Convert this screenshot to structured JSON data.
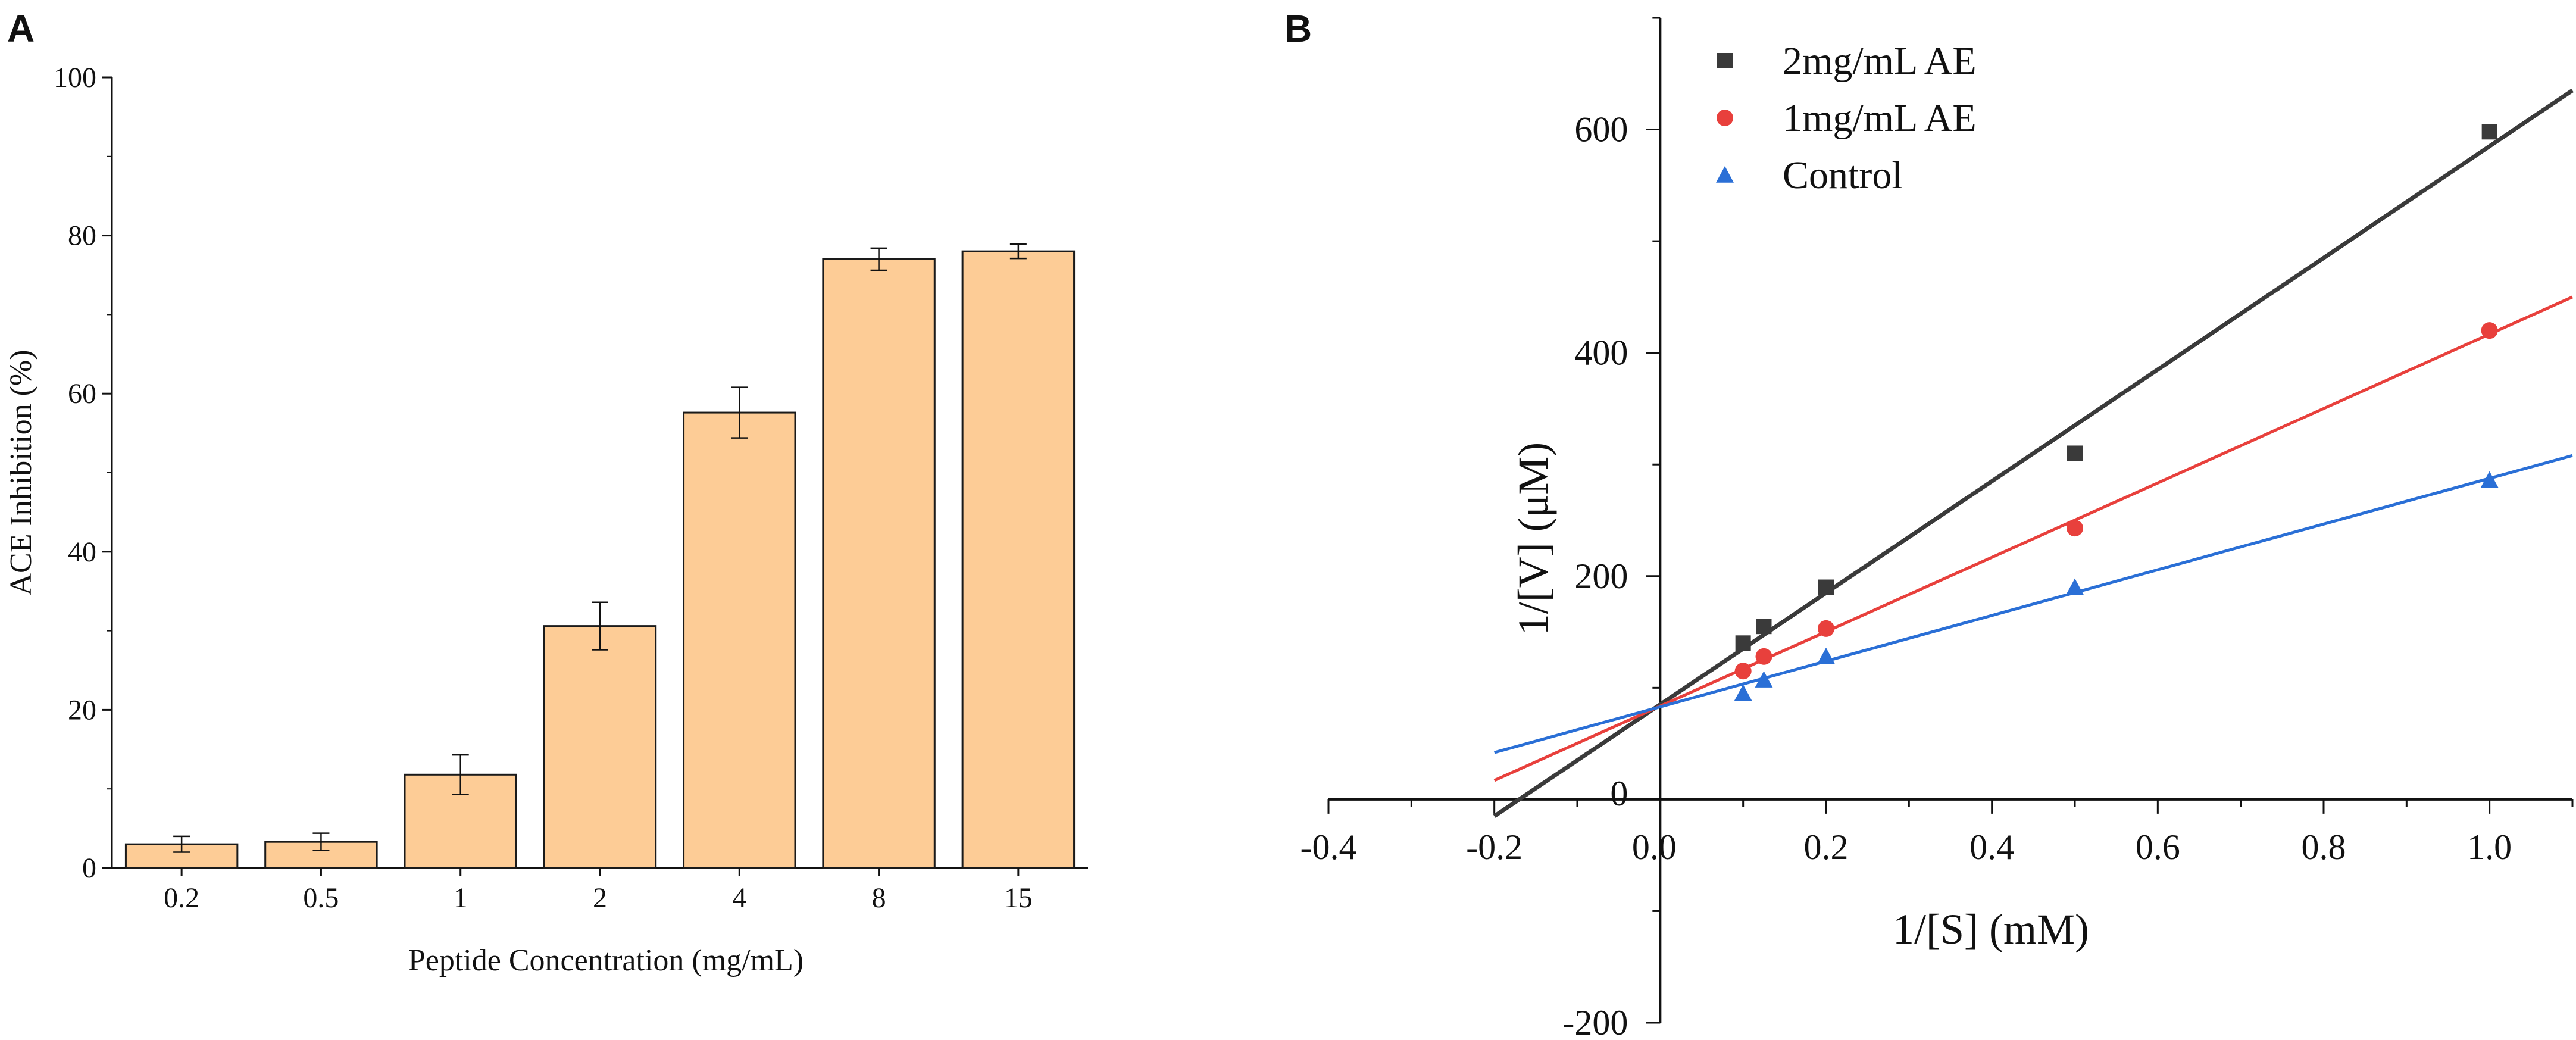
{
  "chart_data": [
    {
      "panel": "A",
      "type": "bar",
      "categories": [
        "0.2",
        "0.5",
        "1",
        "2",
        "4",
        "8",
        "15"
      ],
      "values": [
        3.0,
        3.3,
        11.8,
        30.6,
        57.6,
        77.0,
        78.0
      ],
      "errors": [
        1.0,
        1.1,
        2.5,
        3.0,
        3.2,
        1.4,
        0.9
      ],
      "xlabel": "Peptide Concentration (mg/mL)",
      "ylabel": "ACE Inhibition (%)",
      "ylim": [
        0,
        100
      ],
      "yticks": [
        "0",
        "20",
        "40",
        "60",
        "80",
        "100"
      ],
      "bar_color": "#FDCC96",
      "edge_color": "#1a1a1a"
    },
    {
      "panel": "B",
      "type": "scatter",
      "xlabel": "1/[S] (mM)",
      "ylabel": "1/[V] (μM)",
      "xlim": [
        -0.4,
        1.1
      ],
      "ylim": [
        -200,
        700
      ],
      "xticks": [
        "-0.4",
        "-0.2",
        "0.0",
        "0.2",
        "0.4",
        "0.6",
        "0.8",
        "1.0"
      ],
      "yticks": [
        "-200",
        "0",
        "200",
        "400",
        "600"
      ],
      "legend_position": "top-left",
      "series": [
        {
          "name": "2mg/mL AE",
          "marker": "square",
          "color": "#3a3a3a",
          "x": [
            0.1,
            0.125,
            0.2,
            0.5,
            1.0
          ],
          "y": [
            140,
            155,
            190,
            310,
            598
          ],
          "fit": {
            "x0": -0.2,
            "y0": -15,
            "x1": 1.1,
            "y1": 635
          }
        },
        {
          "name": "1mg/mL AE",
          "marker": "circle",
          "color": "#e8403c",
          "x": [
            0.1,
            0.125,
            0.2,
            0.5,
            1.0
          ],
          "y": [
            115,
            128,
            153,
            243,
            420
          ],
          "fit": {
            "x0": -0.2,
            "y0": 17,
            "x1": 1.1,
            "y1": 450
          }
        },
        {
          "name": "Control",
          "marker": "triangle",
          "color": "#2a6fd6",
          "x": [
            0.1,
            0.125,
            0.2,
            0.5,
            1.0
          ],
          "y": [
            95,
            107,
            128,
            190,
            286
          ],
          "fit": {
            "x0": -0.2,
            "y0": 42,
            "x1": 1.1,
            "y1": 308
          }
        }
      ]
    }
  ],
  "labels": {
    "panel_a": "A",
    "panel_b": "B"
  }
}
